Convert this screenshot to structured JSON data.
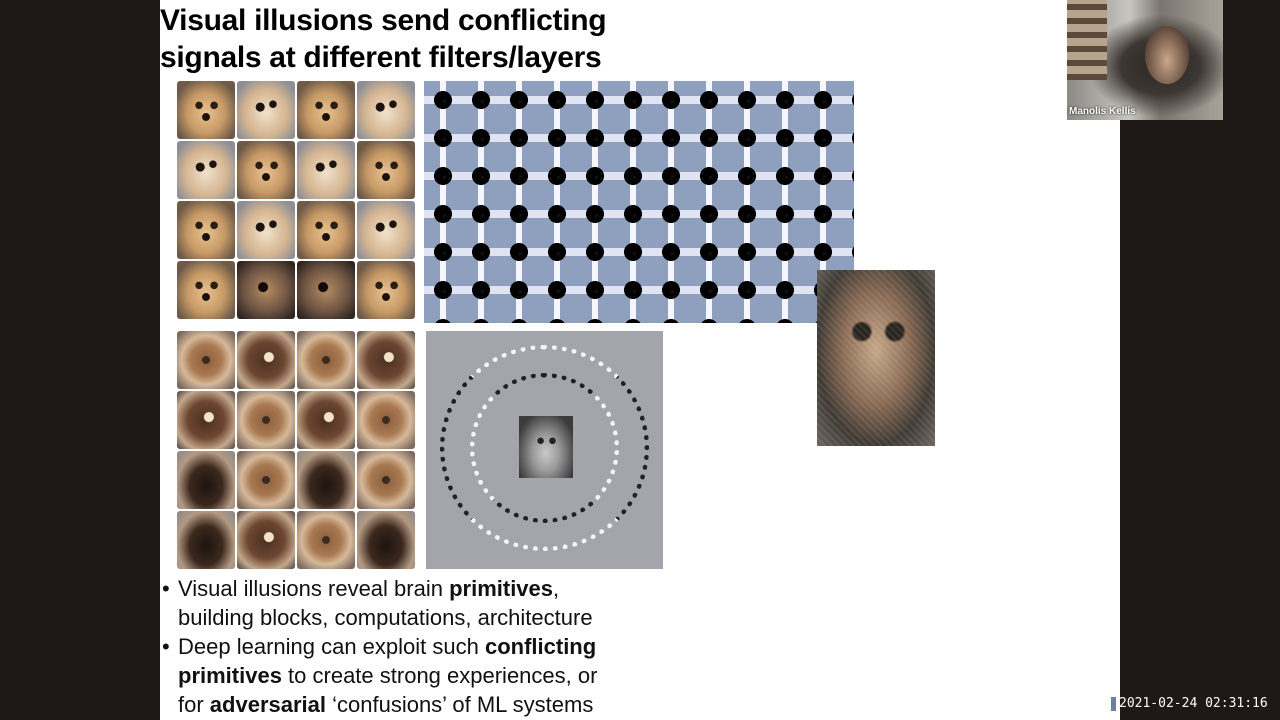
{
  "slide": {
    "title_line1": "Visual illusions send conflicting",
    "title_line2": "signals at different filters/layers",
    "bullets": [
      {
        "line1_pre": "Visual illusions reveal brain ",
        "line1_bold": "primitives",
        "line1_post": ",",
        "line2": "building blocks, computations, architecture"
      },
      {
        "line1_pre": "Deep learning can exploit such ",
        "line1_bold": "conflicting",
        "line2_bold": "primitives",
        "line2_post": " to create strong experiences, or",
        "line3_pre": "for ",
        "line3_bold": "adversarial",
        "line3_post": " ‘confusions’ of ML systems"
      }
    ]
  },
  "video": {
    "participant_name": "Manolis Kellis"
  },
  "recording": {
    "timestamp": "2021-02-24 02:31:16"
  }
}
